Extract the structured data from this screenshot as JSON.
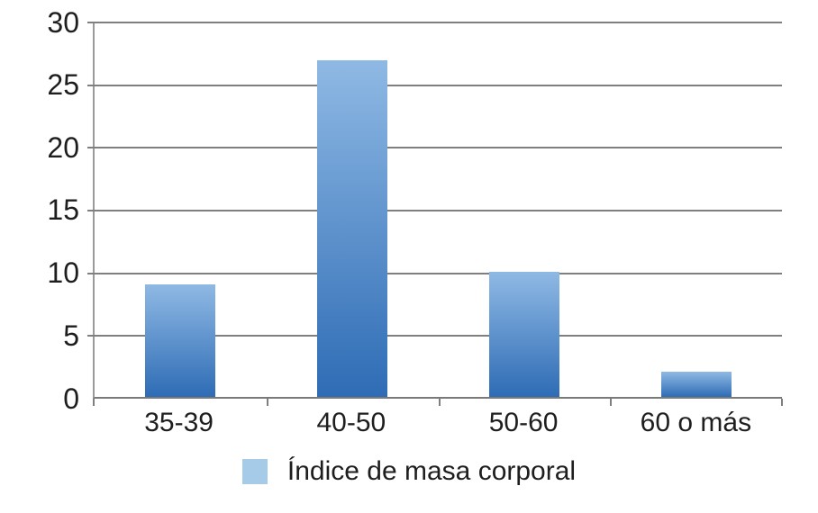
{
  "chart_data": {
    "type": "bar",
    "title": "",
    "xlabel": "",
    "ylabel": "",
    "categories": [
      "35-39",
      "40-50",
      "50-60",
      "60 o más"
    ],
    "values": [
      9,
      27,
      10,
      2
    ],
    "series_name": "Índice de masa corporal",
    "ylim": [
      0,
      30
    ],
    "ytick_interval": 5,
    "yticks_top_to_bottom": [
      "30",
      "25",
      "20",
      "15",
      "10",
      "5",
      "0"
    ],
    "grid": true,
    "legend": {
      "position": "bottom",
      "label": "Índice de masa corporal",
      "swatch_color": "#a5cbe9"
    },
    "colors": {
      "bar_gradient_top": "#8fb9e4",
      "bar_gradient_bottom": "#2e6cb5",
      "gridline": "#7f7f7f",
      "axis": "#9a9a9a",
      "text": "#1e1e1e"
    }
  }
}
